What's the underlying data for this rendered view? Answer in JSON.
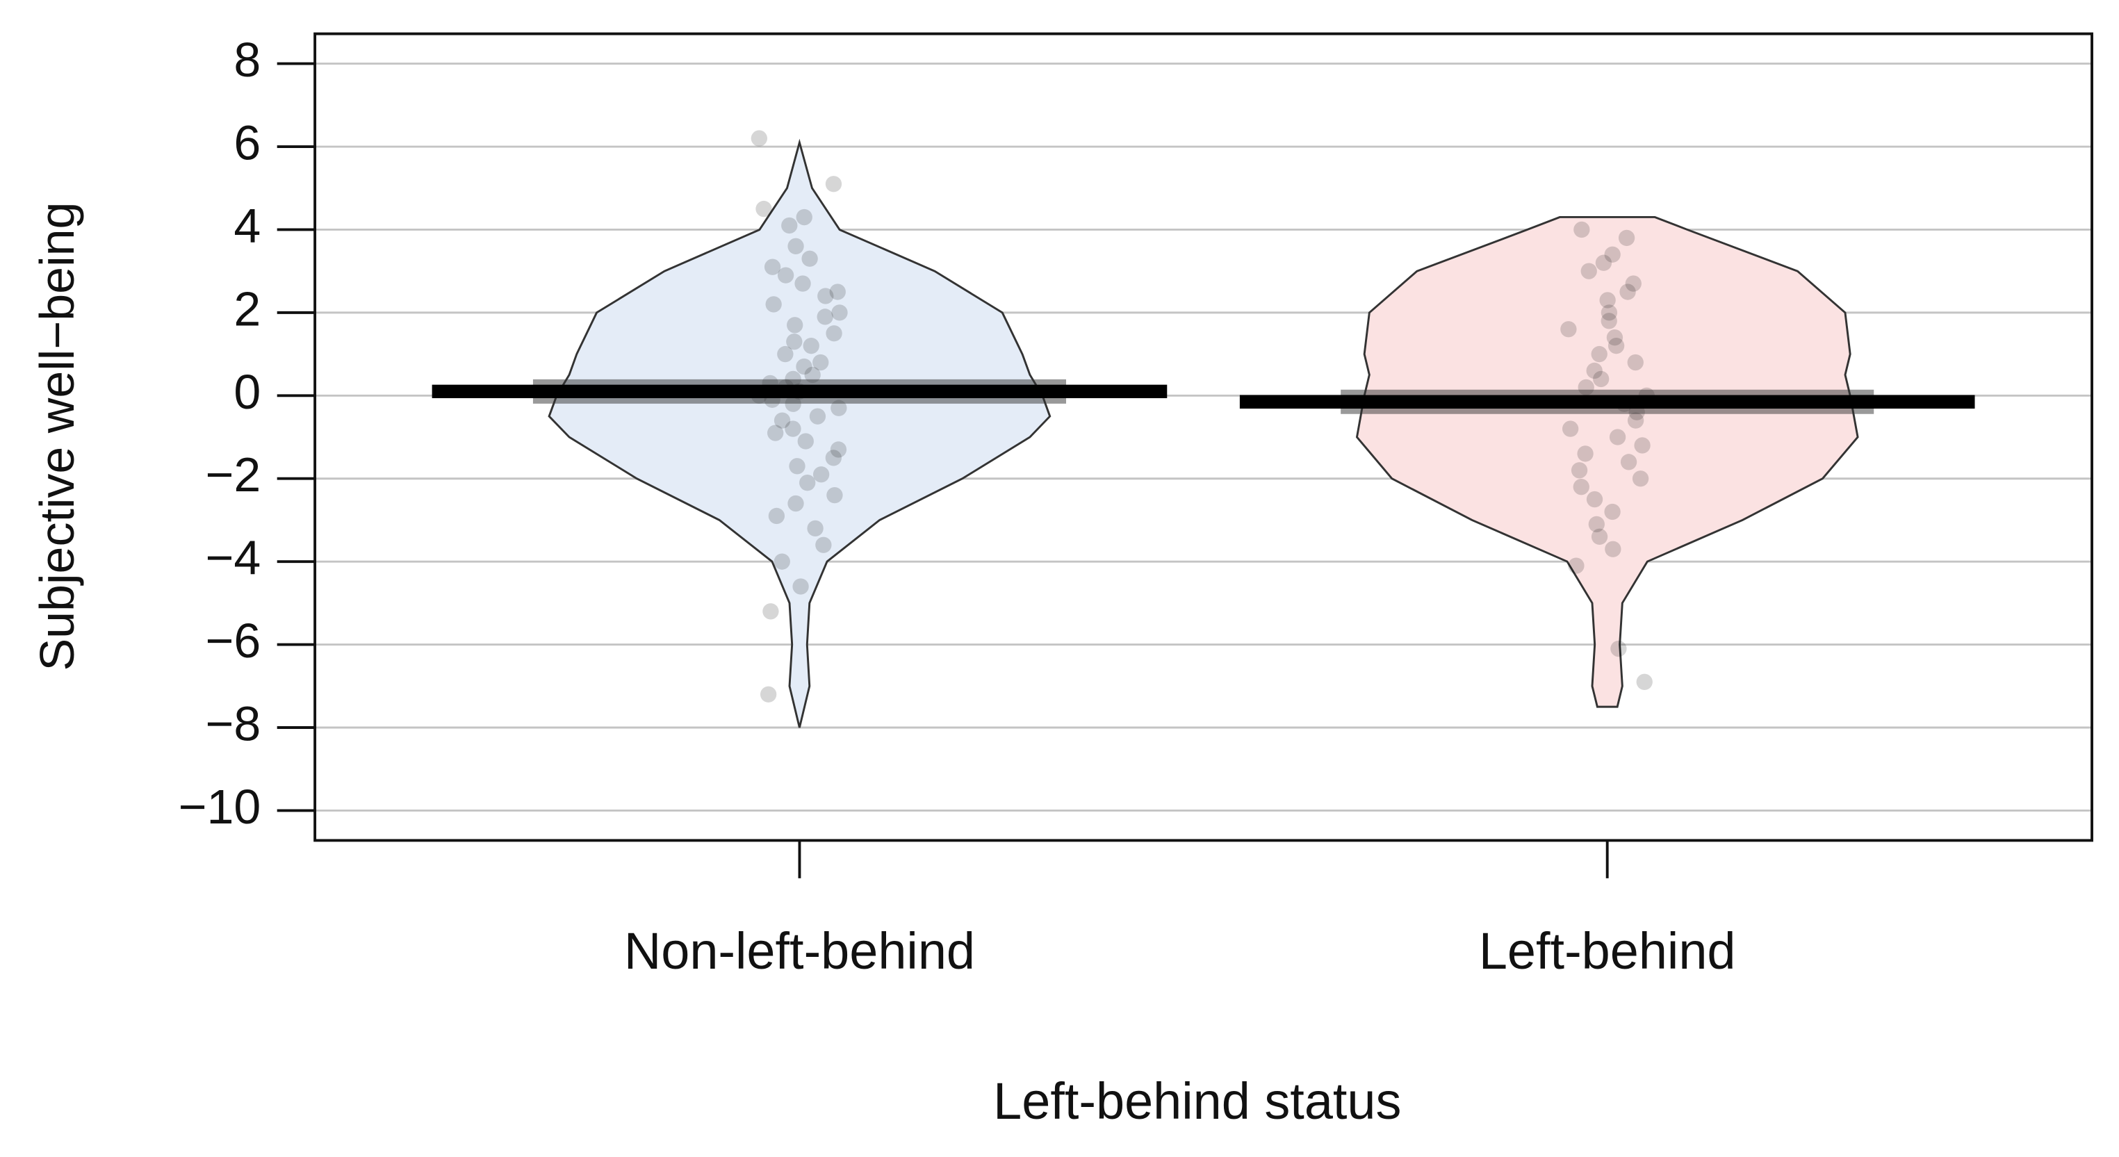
{
  "chart_data": {
    "type": "pirate",
    "y_label": "Subjective well−being",
    "x_label": "Left-behind status",
    "categories": [
      "Non-left-behind",
      "Left-behind"
    ],
    "xlim": [
      0.4,
      2.6
    ],
    "ylim": [
      -10.72,
      8.72
    ],
    "yticks": [
      {
        "value": -10,
        "label": "−10"
      },
      {
        "value": -8,
        "label": "−8"
      },
      {
        "value": -6,
        "label": "−6"
      },
      {
        "value": -4,
        "label": "−4"
      },
      {
        "value": -2,
        "label": "−2"
      },
      0,
      2,
      4,
      6,
      8
    ],
    "grid": true,
    "series": [
      {
        "name": "Non-left-behind",
        "color": "#e4ecf7",
        "mean": 0.1,
        "density": {
          "y": [
            6.1,
            5,
            4,
            3,
            2,
            1,
            0.5,
            0,
            -0.5,
            -1,
            -2,
            -3,
            -4,
            -5,
            -6,
            -7,
            -8
          ],
          "width": [
            0,
            0.05,
            0.16,
            0.54,
            0.81,
            0.89,
            0.92,
            0.97,
            1,
            0.92,
            0.65,
            0.32,
            0.11,
            0.04,
            0.03,
            0.04,
            0
          ]
        },
        "points": [
          6.2,
          5.1,
          4.5,
          4.3,
          4.1,
          3.6,
          3.3,
          3.1,
          2.9,
          2.7,
          2.5,
          2.4,
          2.2,
          2.0,
          1.9,
          1.7,
          1.5,
          1.3,
          1.2,
          1.0,
          0.8,
          0.7,
          0.5,
          0.4,
          0.3,
          0.2,
          0.1,
          0.0,
          -0.1,
          -0.2,
          -0.3,
          -0.5,
          -0.6,
          -0.8,
          -0.9,
          -1.1,
          -1.3,
          -1.5,
          -1.7,
          -1.9,
          -2.1,
          -2.4,
          -2.6,
          -2.9,
          -3.2,
          -3.6,
          -4.0,
          -4.6,
          -5.2,
          -7.2
        ]
      },
      {
        "name": "Left-behind",
        "color": "#fbe2e2",
        "mean": -0.15,
        "density": {
          "y": [
            4.3,
            4,
            3,
            2,
            1,
            0.5,
            0,
            -1,
            -2,
            -3,
            -4,
            -5,
            -6,
            -7,
            -7.5
          ],
          "width": [
            0.19,
            0.32,
            0.76,
            0.95,
            0.97,
            0.95,
            0.97,
            1,
            0.86,
            0.54,
            0.16,
            0.06,
            0.05,
            0.06,
            0.04
          ]
        },
        "points": [
          4.0,
          3.8,
          3.4,
          3.2,
          3.0,
          2.7,
          2.5,
          2.3,
          2.0,
          1.8,
          1.6,
          1.4,
          1.2,
          1.0,
          0.8,
          0.6,
          0.4,
          0.2,
          0.0,
          -0.2,
          -0.4,
          -0.6,
          -0.8,
          -1.0,
          -1.2,
          -1.4,
          -1.6,
          -1.8,
          -2.0,
          -2.2,
          -2.5,
          -2.8,
          -3.1,
          -3.4,
          -3.7,
          -4.1,
          -6.1,
          -6.9
        ]
      }
    ]
  }
}
